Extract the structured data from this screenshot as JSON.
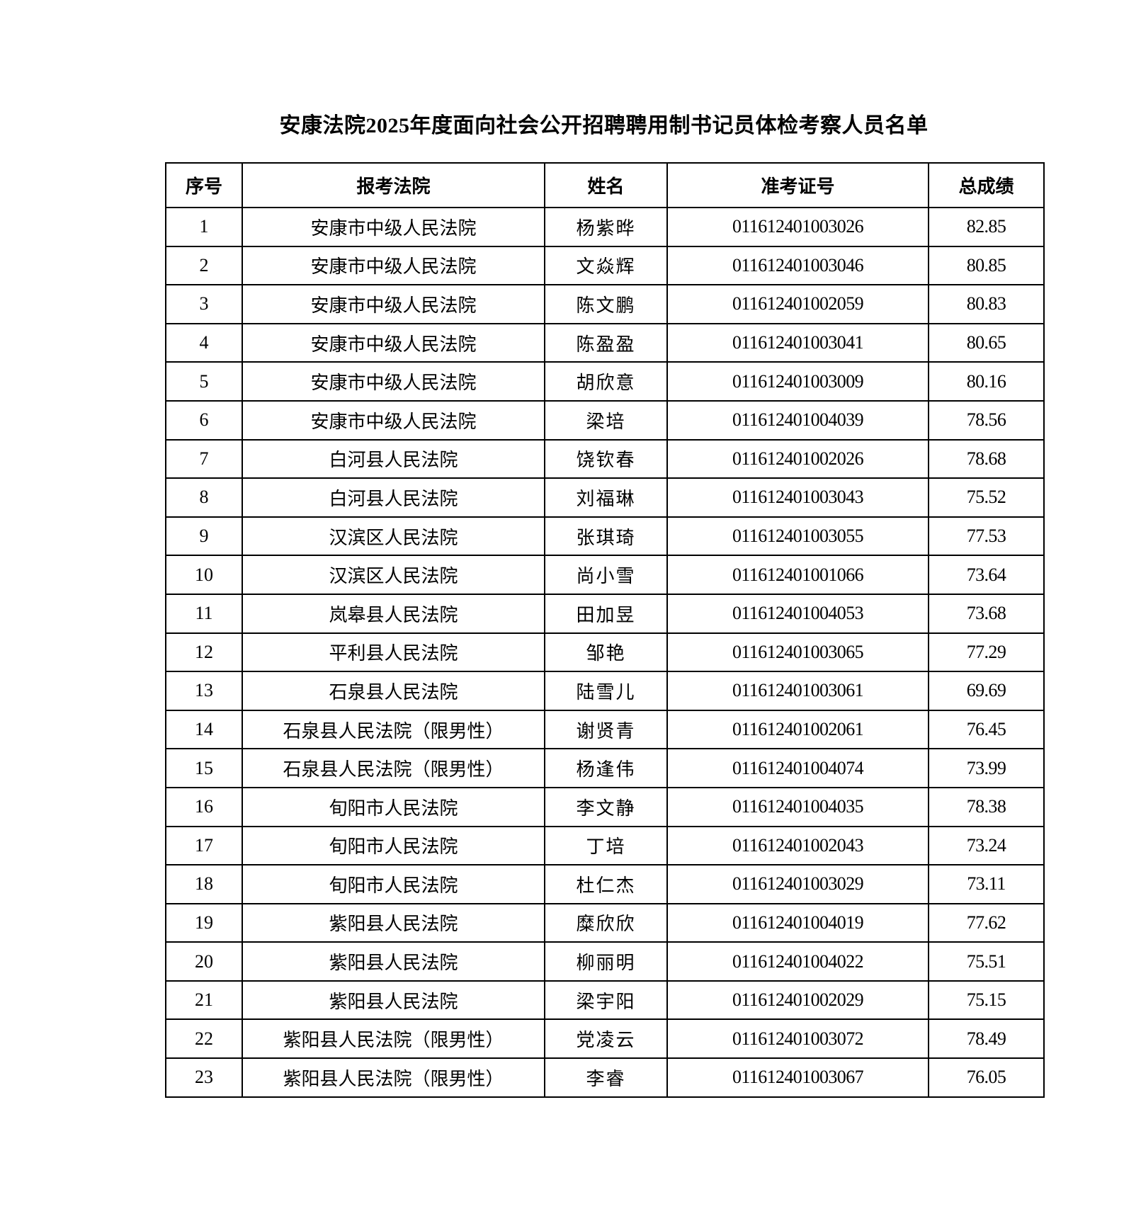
{
  "title": "安康法院2025年度面向社会公开招聘聘用制书记员体检考察人员名单",
  "columns": [
    "序号",
    "报考法院",
    "姓名",
    "准考证号",
    "总成绩"
  ],
  "rows": [
    {
      "no": "1",
      "court": "安康市中级人民法院",
      "name": "杨紫晔",
      "id": "011612401003026",
      "score": "82.85"
    },
    {
      "no": "2",
      "court": "安康市中级人民法院",
      "name": "文焱辉",
      "id": "011612401003046",
      "score": "80.85"
    },
    {
      "no": "3",
      "court": "安康市中级人民法院",
      "name": "陈文鹏",
      "id": "011612401002059",
      "score": "80.83"
    },
    {
      "no": "4",
      "court": "安康市中级人民法院",
      "name": "陈盈盈",
      "id": "011612401003041",
      "score": "80.65"
    },
    {
      "no": "5",
      "court": "安康市中级人民法院",
      "name": "胡欣意",
      "id": "011612401003009",
      "score": "80.16"
    },
    {
      "no": "6",
      "court": "安康市中级人民法院",
      "name": "梁培",
      "id": "011612401004039",
      "score": "78.56"
    },
    {
      "no": "7",
      "court": "白河县人民法院",
      "name": "饶钦春",
      "id": "011612401002026",
      "score": "78.68"
    },
    {
      "no": "8",
      "court": "白河县人民法院",
      "name": "刘福琳",
      "id": "011612401003043",
      "score": "75.52"
    },
    {
      "no": "9",
      "court": "汉滨区人民法院",
      "name": "张琪琦",
      "id": "011612401003055",
      "score": "77.53"
    },
    {
      "no": "10",
      "court": "汉滨区人民法院",
      "name": "尚小雪",
      "id": "011612401001066",
      "score": "73.64"
    },
    {
      "no": "11",
      "court": "岚皋县人民法院",
      "name": "田加昱",
      "id": "011612401004053",
      "score": "73.68"
    },
    {
      "no": "12",
      "court": "平利县人民法院",
      "name": "邹艳",
      "id": "011612401003065",
      "score": "77.29"
    },
    {
      "no": "13",
      "court": "石泉县人民法院",
      "name": "陆雪儿",
      "id": "011612401003061",
      "score": "69.69"
    },
    {
      "no": "14",
      "court": "石泉县人民法院（限男性）",
      "name": "谢贤青",
      "id": "011612401002061",
      "score": "76.45"
    },
    {
      "no": "15",
      "court": "石泉县人民法院（限男性）",
      "name": "杨逢伟",
      "id": "011612401004074",
      "score": "73.99"
    },
    {
      "no": "16",
      "court": "旬阳市人民法院",
      "name": "李文静",
      "id": "011612401004035",
      "score": "78.38"
    },
    {
      "no": "17",
      "court": "旬阳市人民法院",
      "name": "丁培",
      "id": "011612401002043",
      "score": "73.24"
    },
    {
      "no": "18",
      "court": "旬阳市人民法院",
      "name": "杜仁杰",
      "id": "011612401003029",
      "score": "73.11"
    },
    {
      "no": "19",
      "court": "紫阳县人民法院",
      "name": "糜欣欣",
      "id": "011612401004019",
      "score": "77.62"
    },
    {
      "no": "20",
      "court": "紫阳县人民法院",
      "name": "柳丽明",
      "id": "011612401004022",
      "score": "75.51"
    },
    {
      "no": "21",
      "court": "紫阳县人民法院",
      "name": "梁宇阳",
      "id": "011612401002029",
      "score": "75.15"
    },
    {
      "no": "22",
      "court": "紫阳县人民法院（限男性）",
      "name": "党凌云",
      "id": "011612401003072",
      "score": "78.49"
    },
    {
      "no": "23",
      "court": "紫阳县人民法院（限男性）",
      "name": "李睿",
      "id": "011612401003067",
      "score": "76.05"
    }
  ]
}
